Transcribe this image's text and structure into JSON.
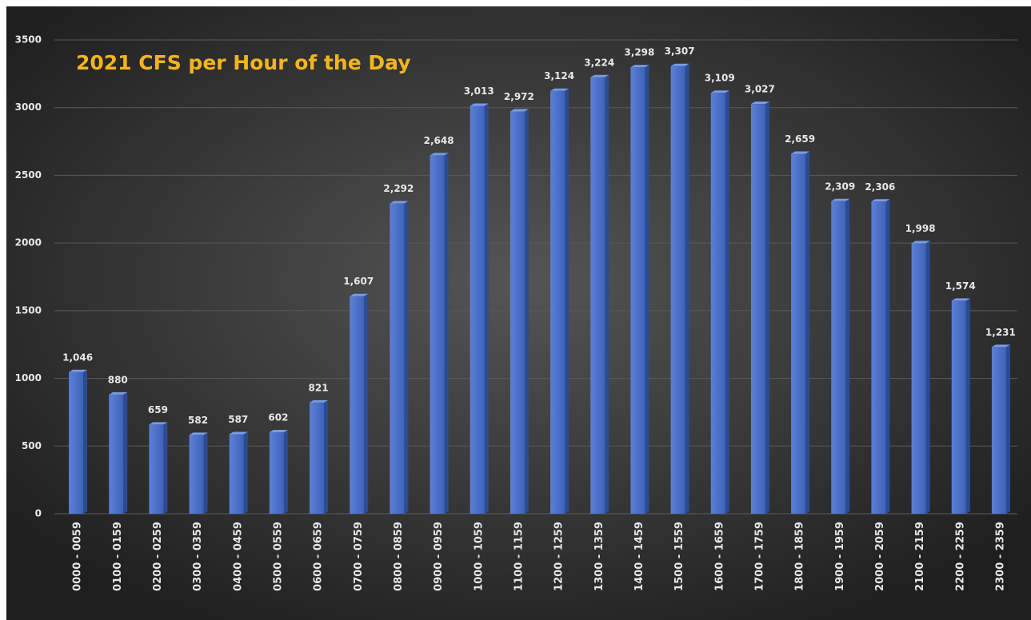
{
  "chart_data": {
    "type": "bar",
    "title": "2021 CFS per Hour of the Day",
    "categories": [
      "0000 - 0059",
      "0100 - 0159",
      "0200 - 0259",
      "0300 - 0359",
      "0400 - 0459",
      "0500 - 0559",
      "0600 - 0659",
      "0700 - 0759",
      "0800 - 0859",
      "0900 - 0959",
      "1000 - 1059",
      "1100 - 1159",
      "1200 - 1259",
      "1300 - 1359",
      "1400 - 1459",
      "1500 - 1559",
      "1600 - 1659",
      "1700 - 1759",
      "1800 - 1859",
      "1900 - 1959",
      "2000 - 2059",
      "2100 - 2159",
      "2200 - 2259",
      "2300 - 2359"
    ],
    "values": [
      1046,
      880,
      659,
      582,
      587,
      602,
      821,
      1607,
      2292,
      2648,
      3013,
      2972,
      3124,
      3224,
      3298,
      3307,
      3109,
      3027,
      2659,
      2309,
      2306,
      1998,
      1574,
      1231
    ],
    "value_labels": [
      "1,046",
      "880",
      "659",
      "582",
      "587",
      "602",
      "821",
      "1,607",
      "2,292",
      "2,648",
      "3,013",
      "2,972",
      "3,124",
      "3,224",
      "3,298",
      "3,307",
      "3,109",
      "3,027",
      "2,659",
      "2,309",
      "2,306",
      "1,998",
      "1,574",
      "1,231"
    ],
    "color": "#4a6fc4",
    "ylim": [
      0,
      3500
    ],
    "yticks": [
      0,
      500,
      1000,
      1500,
      2000,
      2500,
      3000,
      3500
    ],
    "grid": true
  }
}
